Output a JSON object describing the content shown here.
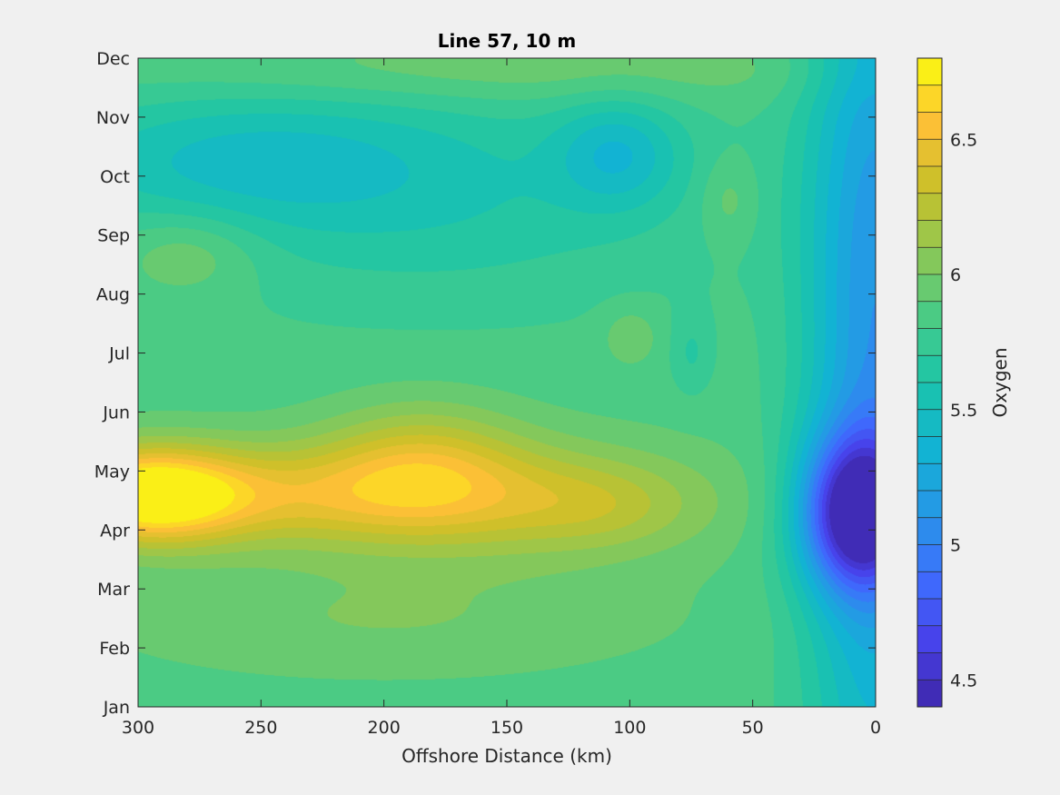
{
  "chart_data": {
    "type": "heatmap",
    "style": "filled contour",
    "title": "Line 57, 10 m",
    "xlabel": "Offshore Distance (km)",
    "ylabel": "",
    "colorbar_label": "Oxygen",
    "x_ticks": [
      "300",
      "250",
      "200",
      "150",
      "100",
      "50",
      "0"
    ],
    "x_tick_values": [
      300,
      250,
      200,
      150,
      100,
      50,
      0
    ],
    "xlim": [
      300,
      0
    ],
    "x_reversed": true,
    "y_ticks": [
      "Jan",
      "Feb",
      "Mar",
      "Apr",
      "May",
      "Jun",
      "Jul",
      "Aug",
      "Sep",
      "Oct",
      "Nov",
      "Dec"
    ],
    "ylim": [
      "Jan",
      "Dec"
    ],
    "colorbar_ticks": [
      "4.5",
      "5",
      "5.5",
      "6",
      "6.5"
    ],
    "colorbar_range": [
      4.4,
      6.8
    ],
    "colorbar_levels": 24,
    "colormap": "parula",
    "grid": false,
    "blobs": [
      {
        "x": 295,
        "y": 3.6,
        "sx": 26,
        "sy": 0.55,
        "amp": 0.85
      },
      {
        "x": 240,
        "y": 3.6,
        "sx": 70,
        "sy": 0.6,
        "amp": 0.45
      },
      {
        "x": 185,
        "y": 4.2,
        "sx": 28,
        "sy": 0.7,
        "amp": 0.35
      },
      {
        "x": 150,
        "y": 3.5,
        "sx": 60,
        "sy": 0.75,
        "amp": 0.3
      },
      {
        "x": 110,
        "y": 3.4,
        "sx": 25,
        "sy": 0.5,
        "amp": 0.15
      },
      {
        "x": 200,
        "y": 1.5,
        "sx": 80,
        "sy": 0.7,
        "amp": 0.15
      },
      {
        "x": 100,
        "y": 6.3,
        "sx": 8,
        "sy": 0.35,
        "amp": 0.15
      },
      {
        "x": 60,
        "y": 8.6,
        "sx": 8,
        "sy": 0.5,
        "amp": 0.15
      },
      {
        "x": 280,
        "y": 7.7,
        "sx": 20,
        "sy": 0.5,
        "amp": 0.2
      },
      {
        "x": 150,
        "y": 10.8,
        "sx": 100,
        "sy": 0.4,
        "amp": 0.15
      },
      {
        "x": 260,
        "y": 9.3,
        "sx": 60,
        "sy": 0.8,
        "amp": -0.3
      },
      {
        "x": 180,
        "y": 8.6,
        "sx": 80,
        "sy": 1.3,
        "amp": -0.22
      },
      {
        "x": 105,
        "y": 9.4,
        "sx": 18,
        "sy": 0.65,
        "amp": -0.35
      },
      {
        "x": 75,
        "y": 6.0,
        "sx": 6,
        "sy": 0.5,
        "amp": -0.15
      },
      {
        "x": 8,
        "y": 3.3,
        "sx": 16,
        "sy": 0.9,
        "amp": -1.2
      },
      {
        "x": 0,
        "y": 6,
        "sx": 20,
        "sy": 6,
        "amp": -0.75
      }
    ]
  }
}
